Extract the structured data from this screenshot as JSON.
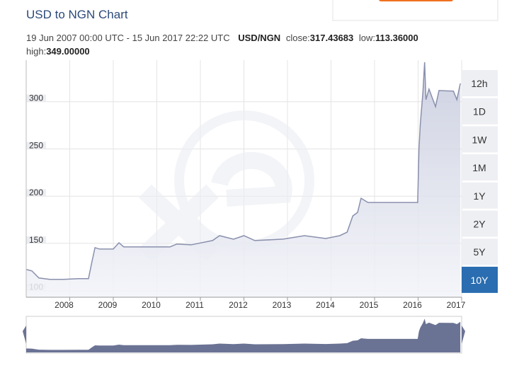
{
  "chart_data": {
    "type": "line",
    "title": "USD to NGN Chart",
    "period": "19 Jun 2007 00:00 UTC - 15 Jun 2017 22:22 UTC",
    "pair": "USD/NGN",
    "stats": [
      {
        "label": "close:",
        "value": "317.43683"
      },
      {
        "label": "low:",
        "value": "113.36000"
      },
      {
        "label": "high:",
        "value": "349.00000"
      }
    ],
    "x": [
      2007.0,
      2007.13,
      2007.29,
      2007.54,
      2007.86,
      2008.2,
      2008.43,
      2008.51,
      2008.58,
      2008.68,
      2009.0,
      2009.13,
      2009.24,
      2009.65,
      2010.3,
      2010.46,
      2010.79,
      2011.28,
      2011.44,
      2011.76,
      2012.0,
      2012.25,
      2012.9,
      2013.39,
      2013.88,
      2014.2,
      2014.37,
      2014.5,
      2014.61,
      2014.69,
      2014.85,
      2015.5,
      2015.99,
      2016.02,
      2016.05,
      2016.11,
      2016.15,
      2016.18,
      2016.25,
      2016.4,
      2016.48,
      2016.81,
      2016.89,
      2016.97
    ],
    "series": [
      {
        "name": "USD/NGN",
        "color": "#8a90ad",
        "values": [
          122.4,
          120.9,
          113.4,
          111.9,
          111.9,
          112.7,
          112.7,
          130.6,
          145.5,
          144.0,
          144.0,
          150.7,
          146.3,
          146.3,
          146.3,
          149.3,
          148.5,
          153.0,
          158.2,
          154.5,
          158.2,
          153.0,
          154.5,
          158.2,
          155.2,
          158.2,
          161.9,
          179.1,
          182.8,
          197.8,
          193.3,
          193.3,
          193.3,
          250.0,
          276.1,
          309.7,
          341.8,
          302.2,
          313.4,
          294.8,
          311.9,
          311.2,
          302.2,
          319.4
        ]
      }
    ],
    "xlim": [
      2007,
      2017
    ],
    "xticks": [
      2008,
      2009,
      2010,
      2011,
      2012,
      2013,
      2014,
      2015,
      2016,
      2017
    ],
    "ylim": [
      93,
      344
    ],
    "yticks": [
      100,
      150,
      200,
      250,
      300
    ],
    "grid": true,
    "range_buttons": [
      "12h",
      "1D",
      "1W",
      "1M",
      "1Y",
      "2Y",
      "5Y",
      "10Y"
    ],
    "selected_range": "10Y"
  }
}
